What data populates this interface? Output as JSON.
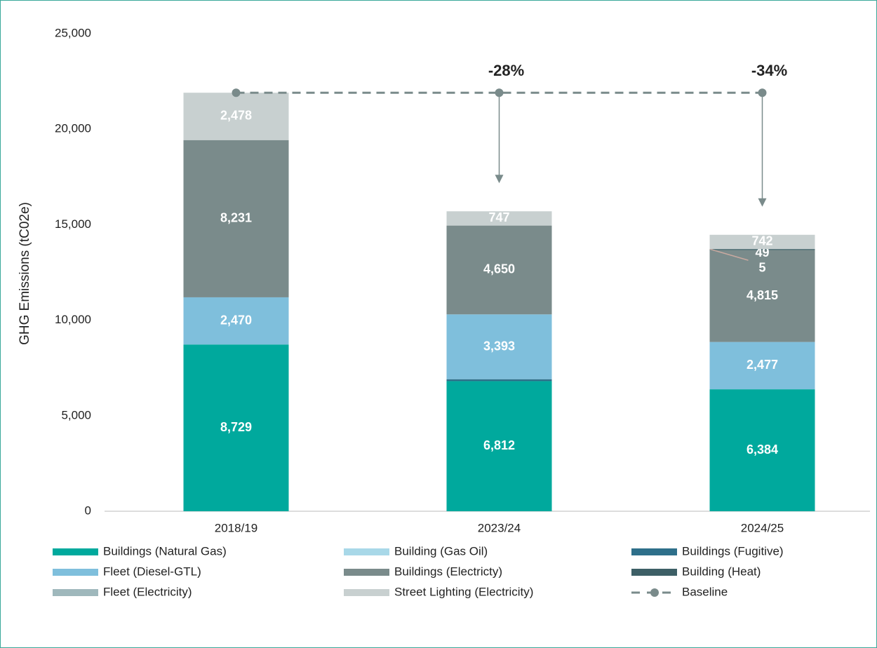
{
  "chart_data": {
    "type": "bar",
    "stacked": true,
    "y_label": "GHG Emissions (tC02e)",
    "categories": [
      "2018/19",
      "2023/24",
      "2024/25"
    ],
    "ylim": [
      0,
      25000
    ],
    "yticks": [
      {
        "value": 0,
        "label": "0"
      },
      {
        "value": 5000,
        "label": "5,000"
      },
      {
        "value": 10000,
        "label": "10,000"
      },
      {
        "value": 15000,
        "label": "15,000"
      },
      {
        "value": 20000,
        "label": "20,000"
      },
      {
        "value": 25000,
        "label": "25,000"
      }
    ],
    "series": [
      {
        "name": "Buildings (Natural Gas)",
        "color": "#00a99d",
        "values": [
          8729,
          6812,
          6384
        ],
        "value_labels": [
          "8,729",
          "6,812",
          "6,384"
        ]
      },
      {
        "name": "Building (Gas Oil)",
        "color": "#a8d8e8",
        "values": [
          0,
          0,
          0
        ],
        "value_labels": [
          null,
          null,
          null
        ]
      },
      {
        "name": "Buildings (Fugitive)",
        "color": "#2e6f8a",
        "values": [
          0,
          100,
          0
        ],
        "value_labels": [
          null,
          null,
          null
        ]
      },
      {
        "name": "Fleet (Diesel-GTL)",
        "color": "#7fbfdc",
        "values": [
          2470,
          3393,
          2477
        ],
        "value_labels": [
          "2,470",
          "3,393",
          "2,477"
        ]
      },
      {
        "name": "Buildings (Electricty)",
        "color": "#7a8b8b",
        "values": [
          8231,
          4650,
          4815
        ],
        "value_labels": [
          "8,231",
          "4,650",
          "4,815"
        ]
      },
      {
        "name": "Building (Heat)",
        "color": "#3d5f66",
        "values": [
          0,
          0,
          49
        ],
        "value_labels": [
          null,
          null,
          "49"
        ]
      },
      {
        "name": "Fleet (Electricity)",
        "color": "#9fb8bc",
        "values": [
          0,
          0,
          5
        ],
        "value_labels": [
          null,
          null,
          "5"
        ]
      },
      {
        "name": "Street Lighting (Electricity)",
        "color": "#c8d0d0",
        "values": [
          2478,
          747,
          742
        ],
        "value_labels": [
          "2,478",
          "747",
          "742"
        ]
      }
    ],
    "baseline": {
      "name": "Baseline",
      "color": "#7a8b8b",
      "values": [
        21908,
        21908,
        21908
      ],
      "reduction_labels": [
        null,
        "-28%",
        "-34%"
      ]
    }
  }
}
